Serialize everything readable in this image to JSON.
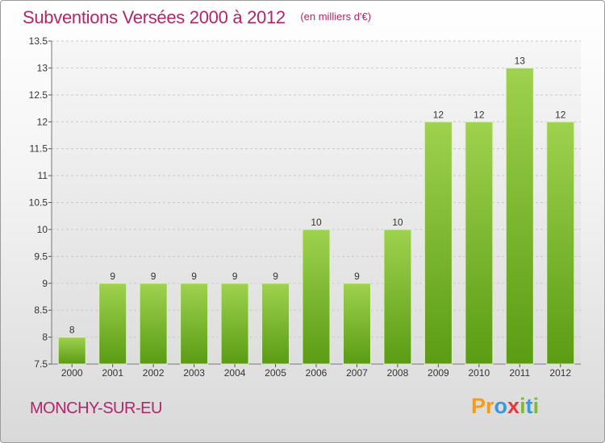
{
  "header": {
    "title": "Subventions Versées 2000 à 2012",
    "unit": "(en milliers d'€)"
  },
  "footer": {
    "town": "MONCHY-SUR-EU",
    "logo_letters": [
      "P",
      "r",
      "o",
      "x",
      "i",
      "t",
      "i"
    ],
    "logo_colors": [
      "#f59b1c",
      "#f59b1c",
      "#3a9ad9",
      "#e23a3a",
      "#7dbb2f",
      "#3a9ad9",
      "#7dbb2f"
    ]
  },
  "colors": {
    "bar_top": "#9fd24e",
    "bar_bottom": "#5a9c14",
    "accent": "#b0266a"
  },
  "chart_data": {
    "type": "bar",
    "title": "Subventions Versées 2000 à 2012",
    "subtitle": "(en milliers d'€)",
    "categories": [
      "2000",
      "2001",
      "2002",
      "2003",
      "2004",
      "2005",
      "2006",
      "2007",
      "2008",
      "2009",
      "2010",
      "2011",
      "2012"
    ],
    "values": [
      8,
      9,
      9,
      9,
      9,
      9,
      10,
      9,
      10,
      12,
      12,
      13,
      12
    ],
    "ylim": [
      7.5,
      13.5
    ],
    "yticks": [
      "7.5",
      "8",
      "8.5",
      "9",
      "9.5",
      "10",
      "10.5",
      "11",
      "11.5",
      "12",
      "12.5",
      "13",
      "13.5"
    ],
    "grid": true,
    "data_labels": true
  }
}
